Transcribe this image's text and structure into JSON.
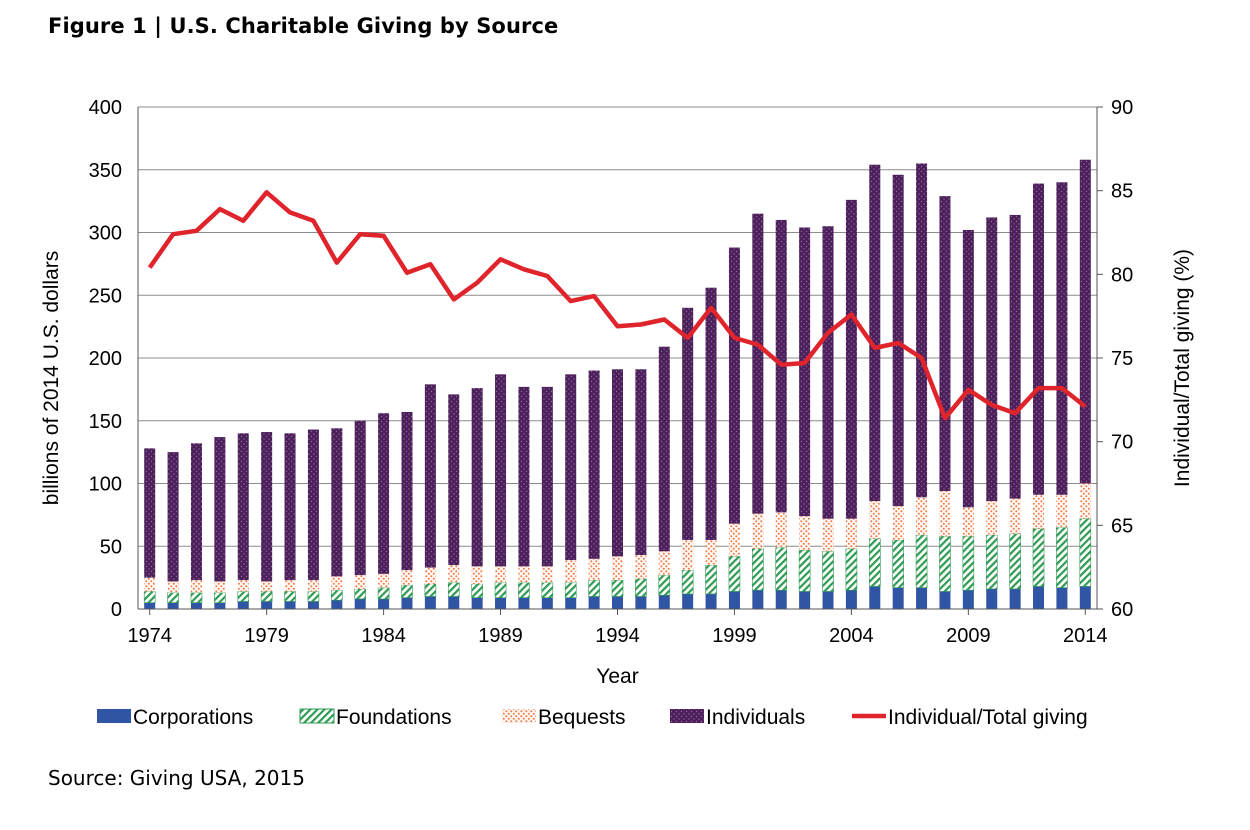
{
  "figure": {
    "title": "Figure 1  |  U.S. Charitable Giving by Source",
    "source": "Source: Giving USA, 2015"
  },
  "colors": {
    "corporations": "#2f55a4",
    "foundations": "#2e9a52",
    "bequests": "#f07a4a",
    "individuals": "#4b1f5a",
    "ratio_line": "#e0242c"
  },
  "chart_data": {
    "type": "bar",
    "stacked": true,
    "xlabel": "Year",
    "ylabel": "billions of 2014 U.S. dollars",
    "y2label": "Individual/Total giving (%)",
    "ylim": [
      0,
      400
    ],
    "y2lim": [
      60,
      90
    ],
    "yticks": [
      0,
      50,
      100,
      150,
      200,
      250,
      300,
      350,
      400
    ],
    "y2ticks": [
      60,
      65,
      70,
      75,
      80,
      85,
      90
    ],
    "xtick_labels": [
      "1974",
      "1979",
      "1984",
      "1989",
      "1994",
      "1999",
      "2004",
      "2009",
      "2014"
    ],
    "grid": true,
    "legend_position": "bottom",
    "categories": [
      1974,
      1975,
      1976,
      1977,
      1978,
      1979,
      1980,
      1981,
      1982,
      1983,
      1984,
      1985,
      1986,
      1987,
      1988,
      1989,
      1990,
      1991,
      1992,
      1993,
      1994,
      1995,
      1996,
      1997,
      1998,
      1999,
      2000,
      2001,
      2002,
      2003,
      2004,
      2005,
      2006,
      2007,
      2008,
      2009,
      2010,
      2011,
      2012,
      2013,
      2014
    ],
    "series": [
      {
        "name": "Corporations",
        "key": "corporations",
        "values": [
          5,
          5,
          5,
          5,
          6,
          6,
          6,
          6,
          7,
          8,
          8,
          9,
          10,
          10,
          9,
          9,
          9,
          9,
          9,
          10,
          10,
          10,
          11,
          12,
          12,
          14,
          15,
          15,
          14,
          14,
          15,
          18,
          17,
          17,
          14,
          15,
          16,
          16,
          18,
          17,
          18
        ]
      },
      {
        "name": "Foundations",
        "key": "foundations",
        "values": [
          9,
          8,
          8,
          8,
          8,
          8,
          8,
          8,
          8,
          8,
          9,
          10,
          10,
          11,
          11,
          12,
          12,
          12,
          12,
          13,
          13,
          14,
          16,
          19,
          23,
          28,
          33,
          34,
          33,
          32,
          33,
          38,
          38,
          42,
          44,
          43,
          43,
          44,
          46,
          48,
          54
        ]
      },
      {
        "name": "Bequests",
        "key": "bequests",
        "values": [
          11,
          9,
          10,
          9,
          9,
          8,
          9,
          9,
          11,
          11,
          11,
          12,
          13,
          14,
          14,
          13,
          13,
          13,
          18,
          17,
          19,
          19,
          19,
          24,
          20,
          26,
          28,
          28,
          27,
          26,
          24,
          30,
          27,
          30,
          36,
          23,
          27,
          28,
          27,
          26,
          28
        ]
      },
      {
        "name": "Individuals",
        "key": "individuals",
        "values": [
          103,
          103,
          109,
          115,
          117,
          119,
          117,
          120,
          118,
          123,
          128,
          126,
          146,
          136,
          142,
          153,
          143,
          143,
          148,
          150,
          149,
          148,
          163,
          185,
          201,
          220,
          239,
          233,
          230,
          233,
          254,
          268,
          264,
          266,
          235,
          221,
          226,
          226,
          248,
          249,
          258
        ]
      }
    ],
    "line": {
      "name": "Individual/Total giving",
      "axis": "right",
      "values": [
        80.4,
        82.4,
        82.6,
        83.9,
        83.2,
        84.9,
        83.7,
        83.2,
        80.7,
        82.4,
        82.3,
        80.1,
        80.6,
        78.5,
        79.5,
        80.9,
        80.3,
        79.9,
        78.4,
        78.7,
        76.9,
        77.0,
        77.3,
        76.2,
        78.0,
        76.2,
        75.8,
        74.6,
        74.7,
        76.5,
        77.6,
        75.6,
        75.9,
        75.0,
        71.4,
        73.1,
        72.2,
        71.7,
        73.2,
        73.2,
        72.1
      ]
    }
  }
}
